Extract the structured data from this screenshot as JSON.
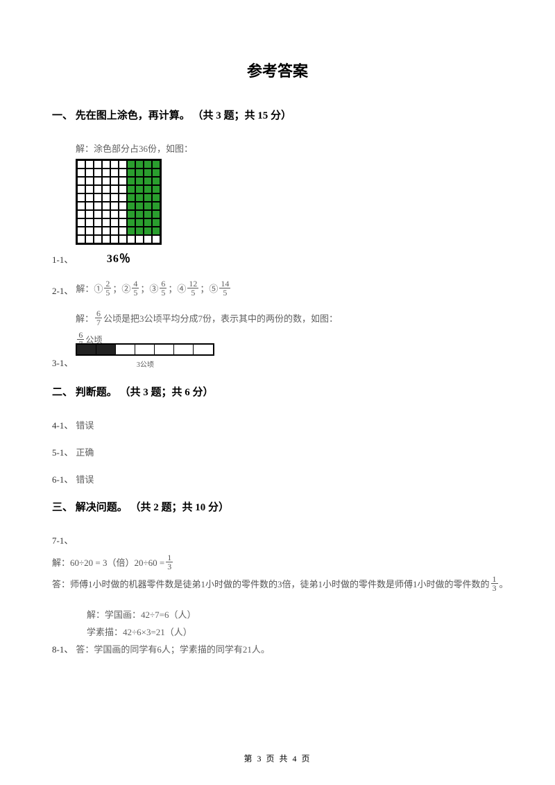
{
  "title": "参考答案",
  "sections": {
    "s1": {
      "header": "一、 先在图上涂色，再计算。 （共 3 题；共 15 分）"
    },
    "s2": {
      "header": "二、 判断题。 （共 3 题；共 6 分）"
    },
    "s3": {
      "header": "三、 解决问题。 （共 2 题；共 10 分）"
    }
  },
  "q1": {
    "num": "1-1、",
    "sol_text": "解：涂色部分占36份，如图：",
    "grid": {
      "rows": 10,
      "cols": 10,
      "green_per_row": [
        4,
        4,
        4,
        4,
        4,
        4,
        4,
        4,
        4,
        0
      ],
      "white_color": "#ffffff",
      "green_color": "#2a9e2e",
      "border_color": "#000000"
    },
    "pct": "36％"
  },
  "q2": {
    "num": "2-1、",
    "prefix": "解：①",
    "fracs": [
      {
        "n": "2",
        "d": "5"
      },
      {
        "n": "4",
        "d": "5"
      },
      {
        "n": "6",
        "d": "5"
      },
      {
        "n": "12",
        "d": "5"
      },
      {
        "n": "14",
        "d": "5"
      }
    ],
    "markers": [
      "；②",
      "；③",
      "；④",
      "；⑤"
    ]
  },
  "q3": {
    "num": "3-1、",
    "sol_prefix": "解：",
    "frac": {
      "n": "6",
      "d": "7"
    },
    "sol_suffix": " 公顷是把3公顷平均分成7份，表示其中的两份的数，如图：",
    "top_label": "公顷",
    "bottom_label": "3公顷",
    "segments": 7,
    "filled": 2
  },
  "q4": {
    "num": "4-1、",
    "ans": "错误"
  },
  "q5": {
    "num": "5-1、",
    "ans": "正确"
  },
  "q6": {
    "num": "6-1、",
    "ans": "错误"
  },
  "q7": {
    "num": "7-1、",
    "line1_a": "解：60÷20 = 3（倍）20÷60 = ",
    "frac1": {
      "n": "1",
      "d": "3"
    },
    "line2_a": "答：师傅1小时做的机器零件数是徒弟1小时做的零件数的3倍，徒弟1小时做的零件数是师傅1小时做的零件数的 ",
    "frac2": {
      "n": "1",
      "d": "3"
    },
    "line2_b": " 。"
  },
  "q8": {
    "num": "8-1、",
    "l1": "解：学国画：42÷7=6（人）",
    "l2": "学素描：42÷6×3=21（人）",
    "l3": "答：学国画的同学有6人；学素描的同学有21人。"
  },
  "footer": "第 3 页 共 4 页",
  "colors": {
    "text_main": "#000000",
    "text_muted": "#606060",
    "background": "#ffffff"
  }
}
